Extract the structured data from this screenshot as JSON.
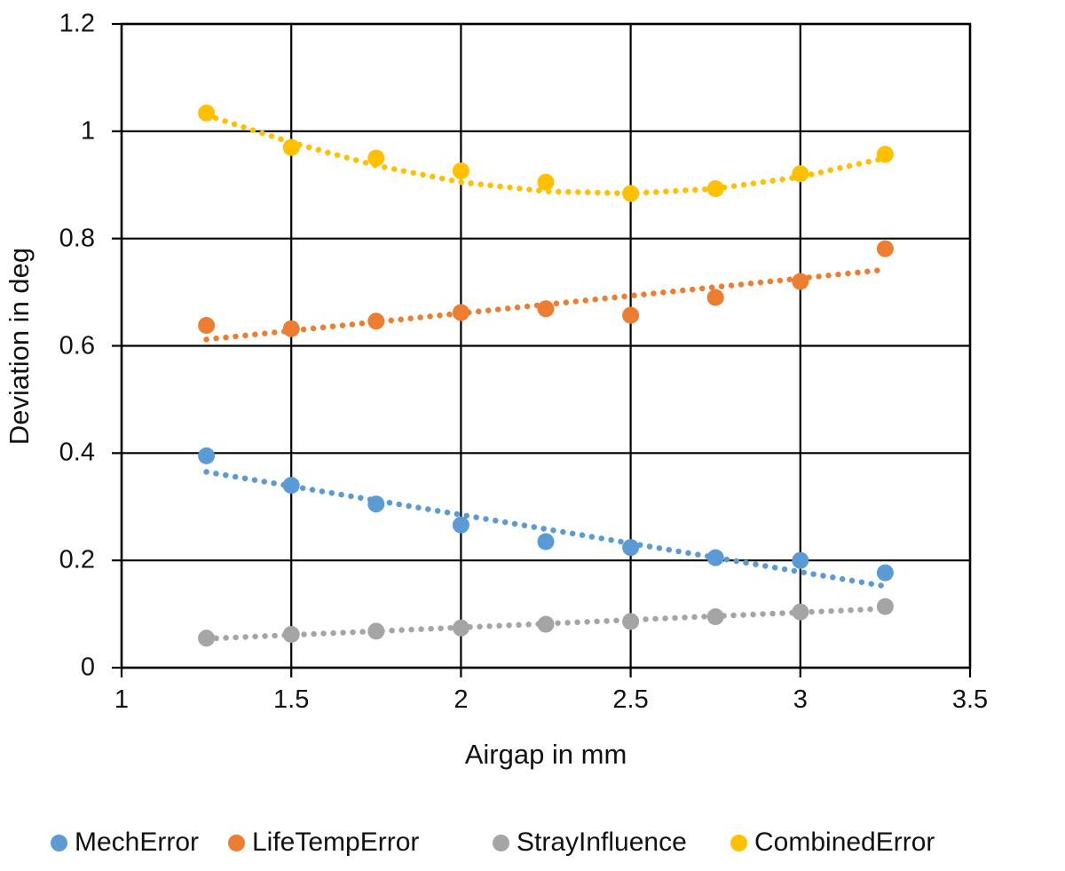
{
  "chart_data": {
    "type": "scatter",
    "title": "",
    "xlabel": "Airgap in mm",
    "ylabel": "Deviation in deg",
    "xlim": [
      1,
      3.5
    ],
    "ylim": [
      0,
      1.2
    ],
    "grid": true,
    "legend_position": "bottom",
    "x_ticks": [
      1,
      1.5,
      2,
      2.5,
      3,
      3.5
    ],
    "x_tick_labels": [
      "1",
      "1.5",
      "2",
      "2.5",
      "3",
      "3.5"
    ],
    "y_ticks": [
      0,
      0.2,
      0.4,
      0.6,
      0.8,
      1,
      1.2
    ],
    "y_tick_labels": [
      "0",
      "0.2",
      "0.4",
      "0.6",
      "0.8",
      "1",
      "1.2"
    ],
    "x": [
      1.25,
      1.5,
      1.75,
      2.0,
      2.25,
      2.5,
      2.75,
      3.0,
      3.25
    ],
    "series": [
      {
        "name": "MechError",
        "color": "#5B9BD5",
        "marker": "circle",
        "values": [
          0.395,
          0.34,
          0.305,
          0.266,
          0.235,
          0.224,
          0.205,
          0.2,
          0.177
        ],
        "trend": {
          "type": "linear",
          "style": "dotted",
          "points": [
            [
              1.25,
              0.365
            ],
            [
              3.25,
              0.152
            ]
          ]
        }
      },
      {
        "name": "LifeTempError",
        "color": "#ED7D31",
        "marker": "circle",
        "values": [
          0.638,
          0.632,
          0.646,
          0.662,
          0.669,
          0.657,
          0.69,
          0.72,
          0.781
        ],
        "trend": {
          "type": "linear",
          "style": "dotted",
          "points": [
            [
              1.25,
              0.612
            ],
            [
              3.25,
              0.742
            ]
          ]
        }
      },
      {
        "name": "StrayInfluence",
        "color": "#A5A5A5",
        "marker": "circle",
        "values": [
          0.055,
          0.062,
          0.068,
          0.074,
          0.081,
          0.086,
          0.095,
          0.104,
          0.114
        ],
        "trend": {
          "type": "linear",
          "style": "dotted",
          "points": [
            [
              1.25,
              0.054
            ],
            [
              3.25,
              0.11
            ]
          ]
        }
      },
      {
        "name": "CombinedError",
        "color": "#FFC000",
        "marker": "circle",
        "values": [
          1.034,
          0.97,
          0.95,
          0.926,
          0.905,
          0.884,
          0.893,
          0.921,
          0.957
        ],
        "trend": {
          "type": "polynomial2",
          "style": "dotted",
          "points": [
            [
              1.25,
              1.03
            ],
            [
              1.5,
              0.979
            ],
            [
              1.75,
              0.936
            ],
            [
              2.0,
              0.905
            ],
            [
              2.25,
              0.888
            ],
            [
              2.5,
              0.884
            ],
            [
              2.75,
              0.893
            ],
            [
              3.0,
              0.915
            ],
            [
              3.25,
              0.95
            ]
          ]
        }
      }
    ]
  }
}
